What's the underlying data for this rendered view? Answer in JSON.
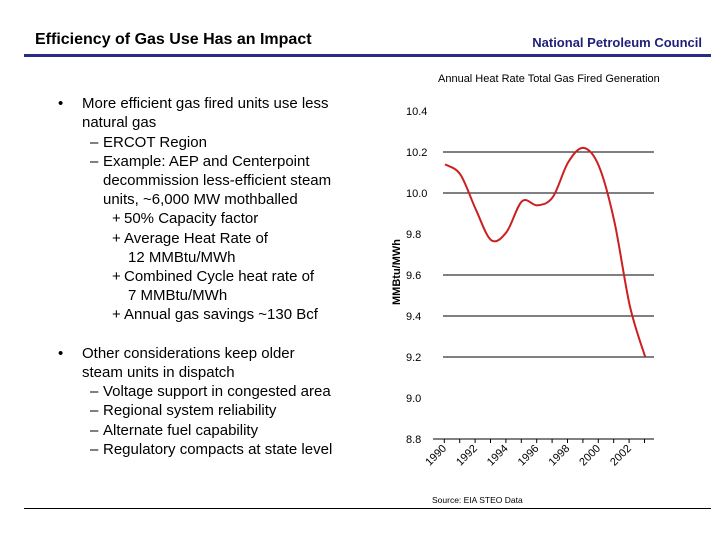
{
  "header": {
    "title": "Efficiency of Gas Use Has an Impact",
    "organization": "National Petroleum Council",
    "accent_color": "#2b2b85"
  },
  "bullets": [
    {
      "level": 0,
      "marker": "•",
      "text": "More efficient gas fired units use less"
    },
    {
      "level": 0,
      "marker": "",
      "text": "natural gas"
    },
    {
      "level": 1,
      "marker": "–",
      "text": "ERCOT Region"
    },
    {
      "level": 1,
      "marker": "–",
      "text": "Example: AEP and Centerpoint"
    },
    {
      "level": 1,
      "marker": "",
      "text": "decommission less-efficient steam"
    },
    {
      "level": 1,
      "marker": "",
      "text": "units, ~6,000 MW mothballed"
    },
    {
      "level": 2,
      "marker": "+",
      "text": "50% Capacity factor"
    },
    {
      "level": 2,
      "marker": "+",
      "text": "Average Heat Rate of"
    },
    {
      "level": 2,
      "marker": "",
      "text": "12 MMBtu/MWh"
    },
    {
      "level": 2,
      "marker": "+",
      "text": "Combined Cycle heat rate of"
    },
    {
      "level": 2,
      "marker": "",
      "text": "7 MMBtu/MWh"
    },
    {
      "level": 2,
      "marker": "+",
      "text": "Annual gas savings ~130 Bcf"
    },
    {
      "level": 0,
      "marker": "•",
      "text": "Other considerations keep older"
    },
    {
      "level": 0,
      "marker": "",
      "text": "steam units in dispatch"
    },
    {
      "level": 1,
      "marker": "–",
      "text": "Voltage support in congested area"
    },
    {
      "level": 1,
      "marker": "–",
      "text": "Regional system reliability"
    },
    {
      "level": 1,
      "marker": "–",
      "text": "Alternate fuel capability"
    },
    {
      "level": 1,
      "marker": "–",
      "text": "Regulatory compacts at state level"
    }
  ],
  "chart_data": {
    "type": "line",
    "title": "Annual Heat Rate Total Gas Fired Generation",
    "xlabel": "",
    "ylabel": "MMBtu/MWh",
    "source": "Source: EIA STEO Data",
    "x": [
      1990,
      1991,
      1992,
      1993,
      1994,
      1995,
      1996,
      1997,
      1998,
      1999,
      2000,
      2001,
      2002,
      2003
    ],
    "series": [
      {
        "values": [
          10.14,
          10.09,
          9.92,
          9.77,
          9.81,
          9.96,
          9.94,
          9.98,
          10.15,
          10.22,
          10.13,
          9.86,
          9.45,
          9.2
        ],
        "color": "#cc1f1f"
      }
    ],
    "ylim": [
      8.8,
      10.4
    ],
    "y_ticks": [
      "10.4",
      "10.2",
      "10.0",
      "9.8",
      "9.6",
      "9.4",
      "9.2",
      "9.0",
      "8.8"
    ],
    "x_ticks": [
      "1990",
      "1992",
      "1994",
      "1996",
      "1998",
      "2000",
      "2002"
    ],
    "gridlines": [
      10.2,
      10.0,
      9.6,
      9.4,
      9.2
    ],
    "legend": "none"
  }
}
